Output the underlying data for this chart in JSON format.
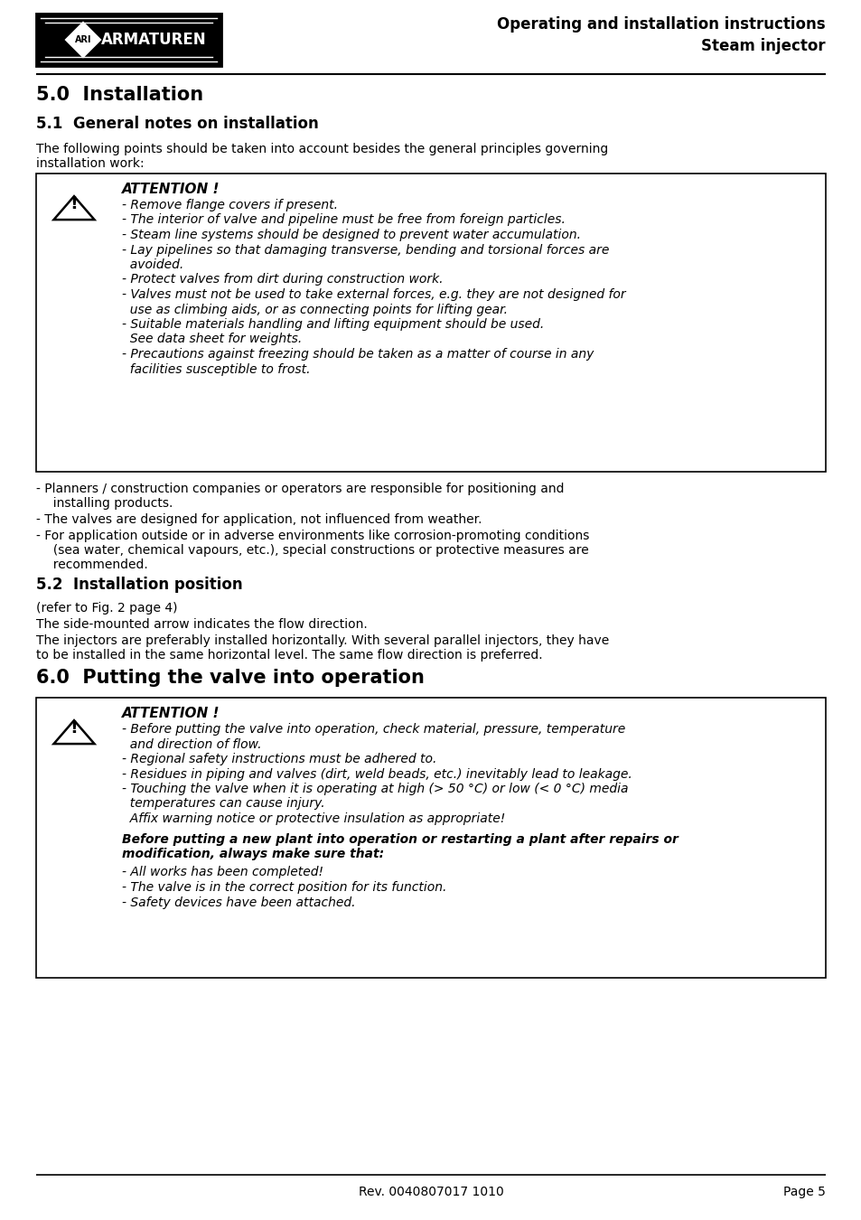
{
  "title_header": "Operating and installation instructions",
  "subtitle_header": "Steam injector",
  "footer_text": "Rev. 0040807017 1010",
  "footer_page": "Page 5",
  "section_50": "5.0  Installation",
  "section_51": "5.1  General notes on installation",
  "intro_text_1": "The following points should be taken into account besides the general principles governing",
  "intro_text_2": "installation work:",
  "attention1_title": "ATTENTION !",
  "attention1_items": [
    "- Remove flange covers if present.",
    "- The interior of valve and pipeline must be free from foreign particles.",
    "- Steam line systems should be designed to prevent water accumulation.",
    "- Lay pipelines so that damaging transverse, bending and torsional forces are",
    "  avoided.",
    "- Protect valves from dirt during construction work.",
    "- Valves must not be used to take external forces, e.g. they are not designed for",
    "  use as climbing aids, or as connecting points for lifting gear.",
    "- Suitable materials handling and lifting equipment should be used.",
    "  See data sheet for weights.",
    "- Precautions against freezing should be taken as a matter of course in any",
    "  facilities susceptible to frost."
  ],
  "bullet_51_1a": "- Planners / construction companies or operators are responsible for positioning and",
  "bullet_51_1b": "  installing products.",
  "bullet_51_2": "- The valves are designed for application, not influenced from weather.",
  "bullet_51_3a": "- For application outside or in adverse environments like corrosion-promoting conditions",
  "bullet_51_3b": "  (sea water, chemical vapours, etc.), special constructions or protective measures are",
  "bullet_51_3c": "  recommended.",
  "section_52": "5.2  Installation position",
  "section_52_sub1": "(refer to Fig. 2 page 4)",
  "section_52_text1": "The side-mounted arrow indicates the flow direction.",
  "section_52_text2a": "The injectors are preferably installed horizontally. With several parallel injectors, they have",
  "section_52_text2b": "to be installed in the same horizontal level. The same flow direction is preferred.",
  "section_60": "6.0  Putting the valve into operation",
  "attention2_title": "ATTENTION !",
  "attention2_items": [
    "- Before putting the valve into operation, check material, pressure, temperature",
    "  and direction of flow.",
    "- Regional safety instructions must be adhered to.",
    "- Residues in piping and valves (dirt, weld beads, etc.) inevitably lead to leakage.",
    "- Touching the valve when it is operating at high (> 50 °C) or low (< 0 °C) media",
    "  temperatures can cause injury.",
    "  Affix warning notice or protective insulation as appropriate!"
  ],
  "attention2_para": "Before putting a new plant into operation or restarting a plant after repairs or",
  "attention2_para2": "modification, always make sure that:",
  "attention2_final": [
    "- All works has been completed!",
    "- The valve is in the correct position for its function.",
    "- Safety devices have been attached."
  ],
  "bg_color": "#ffffff",
  "text_color": "#000000"
}
